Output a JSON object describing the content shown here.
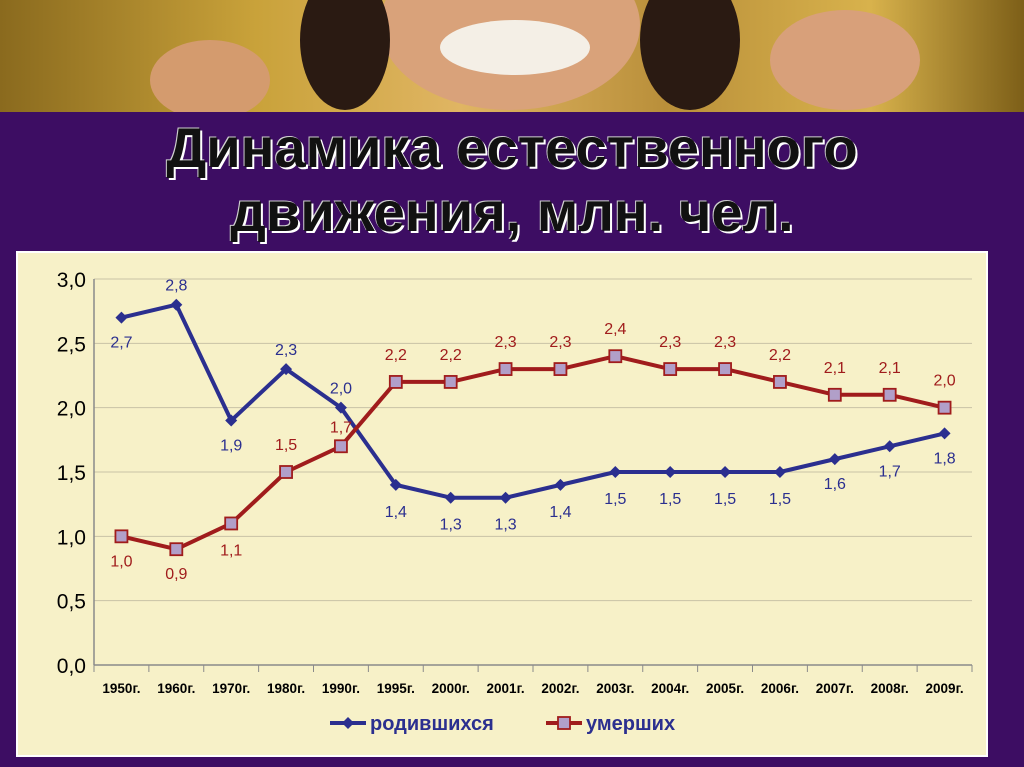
{
  "title_line1": "Динамика естественного",
  "title_line2": "движения, млн. чел.",
  "chart_data": {
    "type": "line",
    "title": "Динамика естественного движения, млн. чел.",
    "categories": [
      "1950г.",
      "1960г.",
      "1970г.",
      "1980г.",
      "1990г.",
      "1995г.",
      "2000г.",
      "2001г.",
      "2002г.",
      "2003г.",
      "2004г.",
      "2005г.",
      "2006г.",
      "2007г.",
      "2008г.",
      "2009г."
    ],
    "series": [
      {
        "name": "родившихся",
        "color": "#2b2f8f",
        "marker": "diamond",
        "values": [
          2.7,
          2.8,
          1.9,
          2.3,
          2.0,
          1.4,
          1.3,
          1.3,
          1.4,
          1.5,
          1.5,
          1.5,
          1.5,
          1.6,
          1.7,
          1.8
        ],
        "labels": [
          "2,7",
          "2,8",
          "1,9",
          "2,3",
          "2,0",
          "1,4",
          "1,3",
          "1,3",
          "1,4",
          "1,5",
          "1,5",
          "1,5",
          "1,5",
          "1,6",
          "1,7",
          "1,8"
        ]
      },
      {
        "name": "умерших",
        "color": "#a01c1c",
        "marker": "square",
        "values": [
          1.0,
          0.9,
          1.1,
          1.5,
          1.7,
          2.2,
          2.2,
          2.3,
          2.3,
          2.4,
          2.3,
          2.3,
          2.2,
          2.1,
          2.1,
          2.0
        ],
        "labels": [
          "1,0",
          "0,9",
          "1,1",
          "1,5",
          "1,7",
          "2,2",
          "2,2",
          "2,3",
          "2,3",
          "2,4",
          "2,3",
          "2,3",
          "2,2",
          "2,1",
          "2,1",
          "2,0"
        ]
      }
    ],
    "yticks": [
      "0,0",
      "0,5",
      "1,0",
      "1,5",
      "2,0",
      "2,5",
      "3,0"
    ],
    "ylim": [
      0,
      3
    ],
    "grid": true,
    "legend": "bottom"
  }
}
